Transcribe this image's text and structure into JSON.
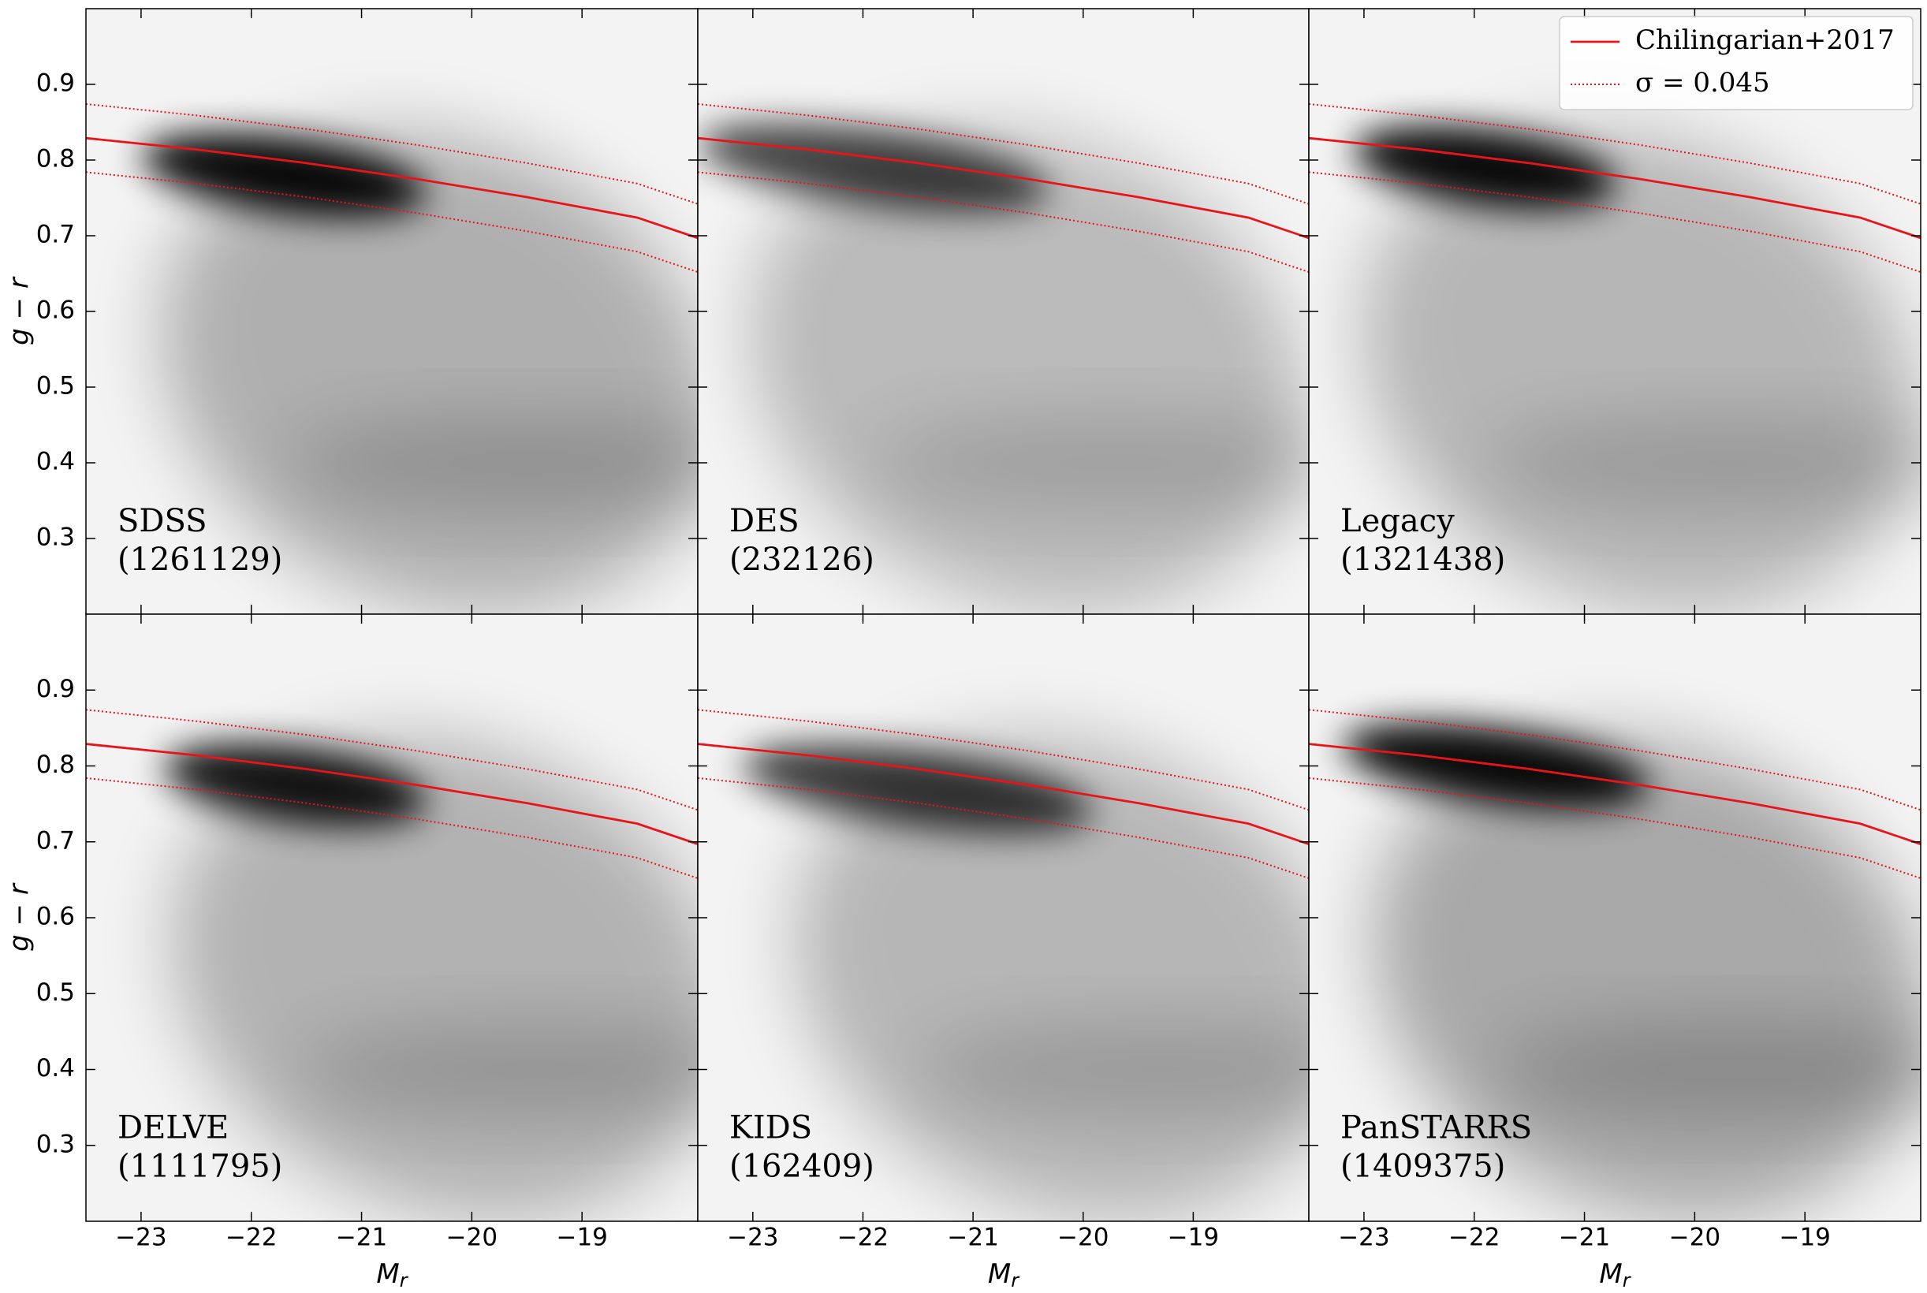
{
  "chart_data": {
    "type": "hist2d-grid",
    "xlabel": "M",
    "xlabel_sub": "r",
    "ylabel": "g − r",
    "xlim": [
      -23.5,
      -17.95
    ],
    "ylim": [
      0.2,
      1.0
    ],
    "xticks": [
      {
        "value": -23,
        "label": "−23"
      },
      {
        "value": -22,
        "label": "−22"
      },
      {
        "value": -21,
        "label": "−21"
      },
      {
        "value": -20,
        "label": "−20"
      },
      {
        "value": -19,
        "label": "−19"
      }
    ],
    "yticks": [
      0.3,
      0.4,
      0.5,
      0.6,
      0.7,
      0.8,
      0.9
    ],
    "legend": "upper right",
    "x": [
      -23.5,
      -22.5,
      -21.5,
      -20.5,
      -19.5,
      -18.5,
      -17.95
    ],
    "series": [
      {
        "name": "Chilingarian+2017",
        "color": "#e8141a",
        "style": "solid",
        "values": [
          0.829,
          0.814,
          0.796,
          0.775,
          0.751,
          0.724,
          0.697
        ]
      },
      {
        "name": "σ = 0.045",
        "color": "#e8141a",
        "style": "dotted",
        "values": [
          0.874,
          0.859,
          0.841,
          0.82,
          0.796,
          0.769,
          0.742
        ],
        "lower": [
          0.784,
          0.769,
          0.751,
          0.73,
          0.706,
          0.679,
          0.652
        ]
      }
    ],
    "panels": [
      {
        "title": "SDSS",
        "count_label": "(1261129)"
      },
      {
        "title": "DES",
        "count_label": "(232126)"
      },
      {
        "title": "Legacy",
        "count_label": "(1321438)"
      },
      {
        "title": "DELVE",
        "count_label": "(1111795)"
      },
      {
        "title": "KIDS",
        "count_label": "(162409)"
      },
      {
        "title": "PanSTARRS",
        "count_label": "(1409375)"
      }
    ]
  }
}
